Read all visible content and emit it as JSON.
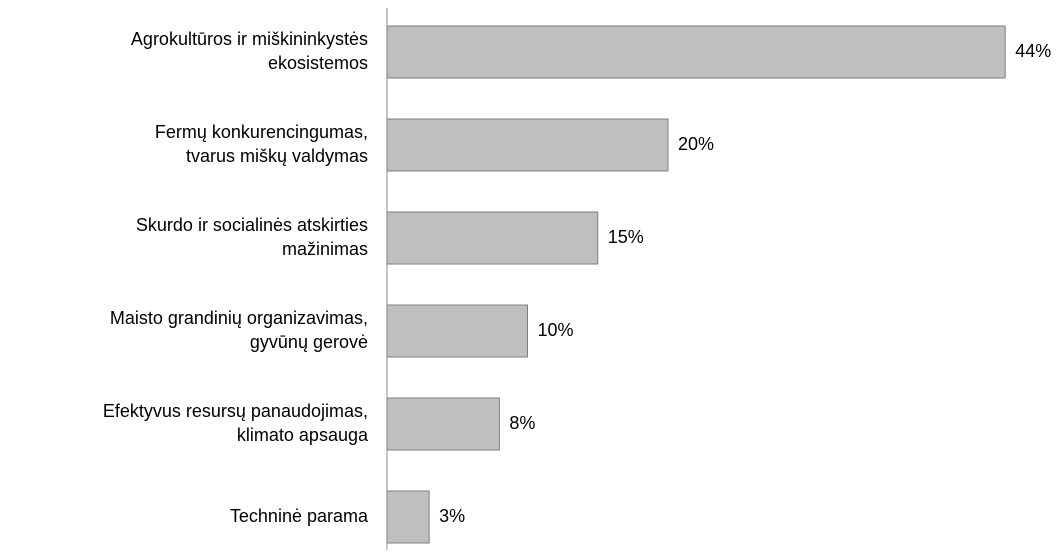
{
  "chart_data": {
    "type": "bar",
    "orientation": "horizontal",
    "categories": [
      "Agrokultūros ir miškininkystės\nekosistemos",
      "Fermų konkurencingumas,\ntvarus miškų valdymas",
      "Skurdo ir socialinės atskirties\nmažinimas",
      "Maisto grandinių organizavimas,\ngyvūnų gerovė",
      "Efektyvus resursų panaudojimas,\nklimato apsauga",
      "Techninė parama"
    ],
    "values": [
      44,
      20,
      15,
      10,
      8,
      3
    ],
    "value_labels": [
      "44%",
      "20%",
      "15%",
      "10%",
      "8%",
      "3%"
    ],
    "color": "#bfbfbf",
    "edge_color": "#7f7f7f"
  }
}
